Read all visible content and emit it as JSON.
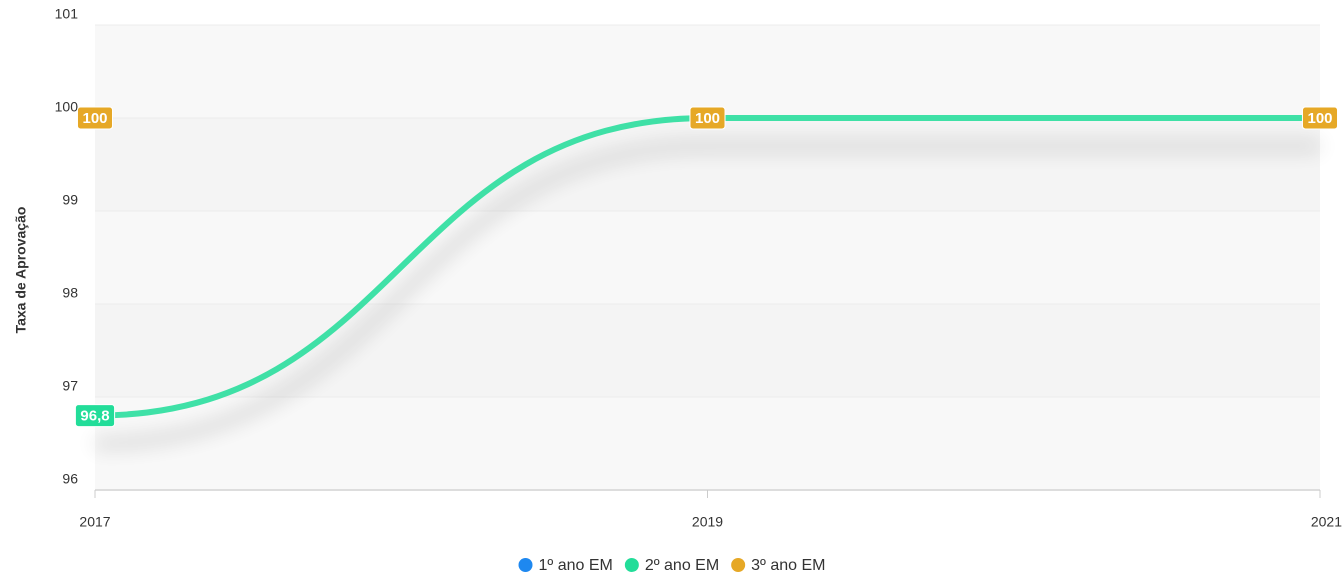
{
  "chart_data": {
    "type": "line",
    "y_label": "Taxa de Aprovação",
    "categories": [
      "2017",
      "2019",
      "2021"
    ],
    "series": [
      {
        "name": "1º ano EM",
        "color": "#1e88f0",
        "values": [
          100,
          100,
          100
        ]
      },
      {
        "name": "2º ano EM",
        "color": "#22dd99",
        "values": [
          96.8,
          100,
          100
        ],
        "value_labels": [
          "96,8",
          "100",
          "100"
        ]
      },
      {
        "name": "3º ano EM",
        "color": "#e6a826",
        "values": [
          100,
          100,
          100
        ]
      }
    ],
    "ylim": [
      96,
      101
    ],
    "yticks": [
      96,
      97,
      98,
      99,
      100,
      101
    ],
    "grid": true
  }
}
